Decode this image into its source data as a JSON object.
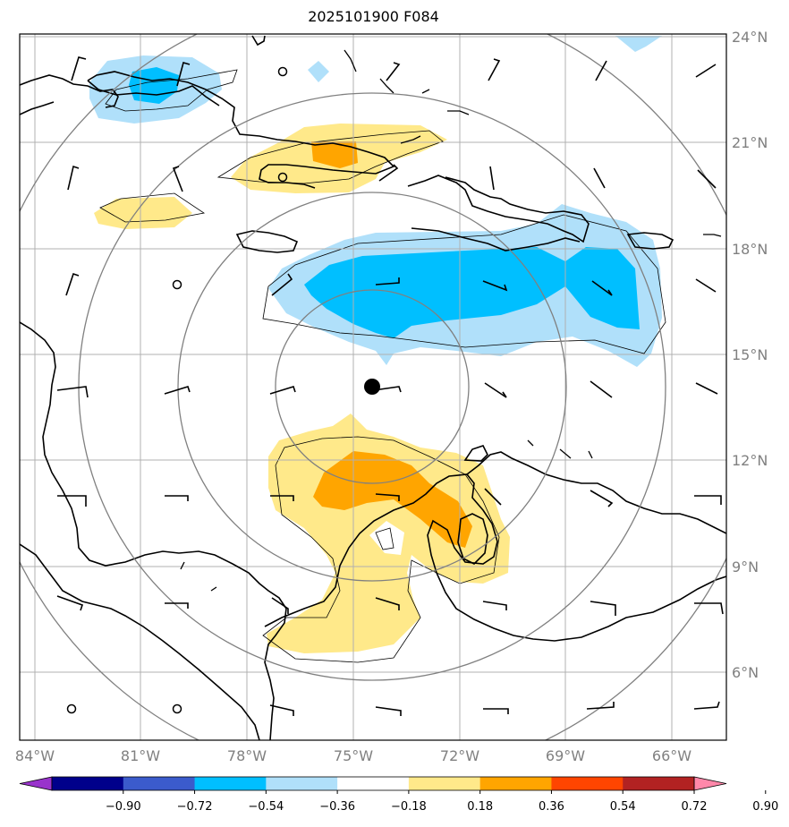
{
  "title": "2025101900 F084",
  "lat_labels": [
    "24°N",
    "21°N",
    "18°N",
    "15°N",
    "12°N",
    "9°N",
    "6°N"
  ],
  "lon_labels": [
    "84°W",
    "81°W",
    "78°W",
    "75°W",
    "72°W",
    "69°W",
    "66°W"
  ],
  "colorbar": {
    "ticks": [
      "−0.90",
      "−0.72",
      "−0.54",
      "−0.36",
      "−0.18",
      "0.18",
      "0.36",
      "0.54",
      "0.72",
      "0.90"
    ],
    "colors": [
      "#9933cc",
      "#00008b",
      "#3b5bcc",
      "#00bfff",
      "#b0e0fa",
      "#ffffff",
      "#ffe98a",
      "#ffa500",
      "#ff4500",
      "#b22222",
      "#ff88aa"
    ]
  },
  "colors": {
    "light_blue": "#b0e0fa",
    "blue": "#00bfff",
    "light_yellow": "#ffe98a",
    "orange": "#ffa500",
    "grid": "#b0b0b0",
    "range_ring": "#808080",
    "coast": "#000000"
  },
  "storm_center": {
    "lat": 14.1,
    "lon": "74.1W"
  }
}
